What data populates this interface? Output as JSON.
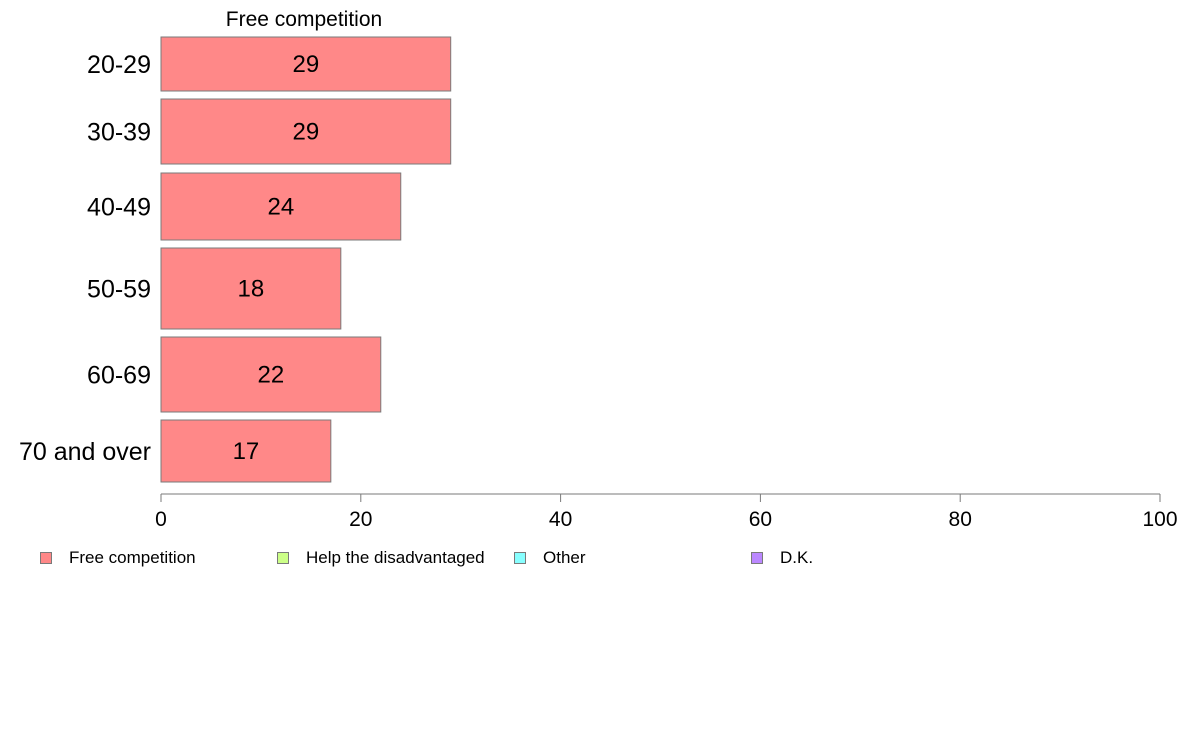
{
  "chart_data": {
    "type": "bar",
    "orientation": "horizontal",
    "title": "Free competition",
    "categories": [
      "20-29",
      "30-39",
      "40-49",
      "50-59",
      "60-69",
      "70 and over"
    ],
    "series": [
      {
        "name": "Free competition",
        "values": [
          29,
          29,
          24,
          18,
          22,
          17
        ],
        "data_labels": [
          "29",
          "29",
          "24",
          "18",
          "22",
          "17"
        ]
      }
    ],
    "xlim": [
      0,
      100
    ],
    "x_ticks": [
      0,
      20,
      40,
      60,
      80,
      100
    ],
    "x_tick_labels": [
      "0",
      "20",
      "40",
      "60",
      "80",
      "100"
    ],
    "grid": false,
    "legend": {
      "placement": "bottom",
      "entries": [
        {
          "label": "Free competition",
          "color": "#ff8888"
        },
        {
          "label": "Help the disadvantaged",
          "color": "#ccff88"
        },
        {
          "label": "Other",
          "color": "#88ffff"
        },
        {
          "label": "D.K.",
          "color": "#bb88ff"
        }
      ]
    },
    "colors": {
      "bar_fill": "#ff8888",
      "bar_stroke": "#7a7a7a",
      "axis": "#7a7a7a"
    }
  }
}
